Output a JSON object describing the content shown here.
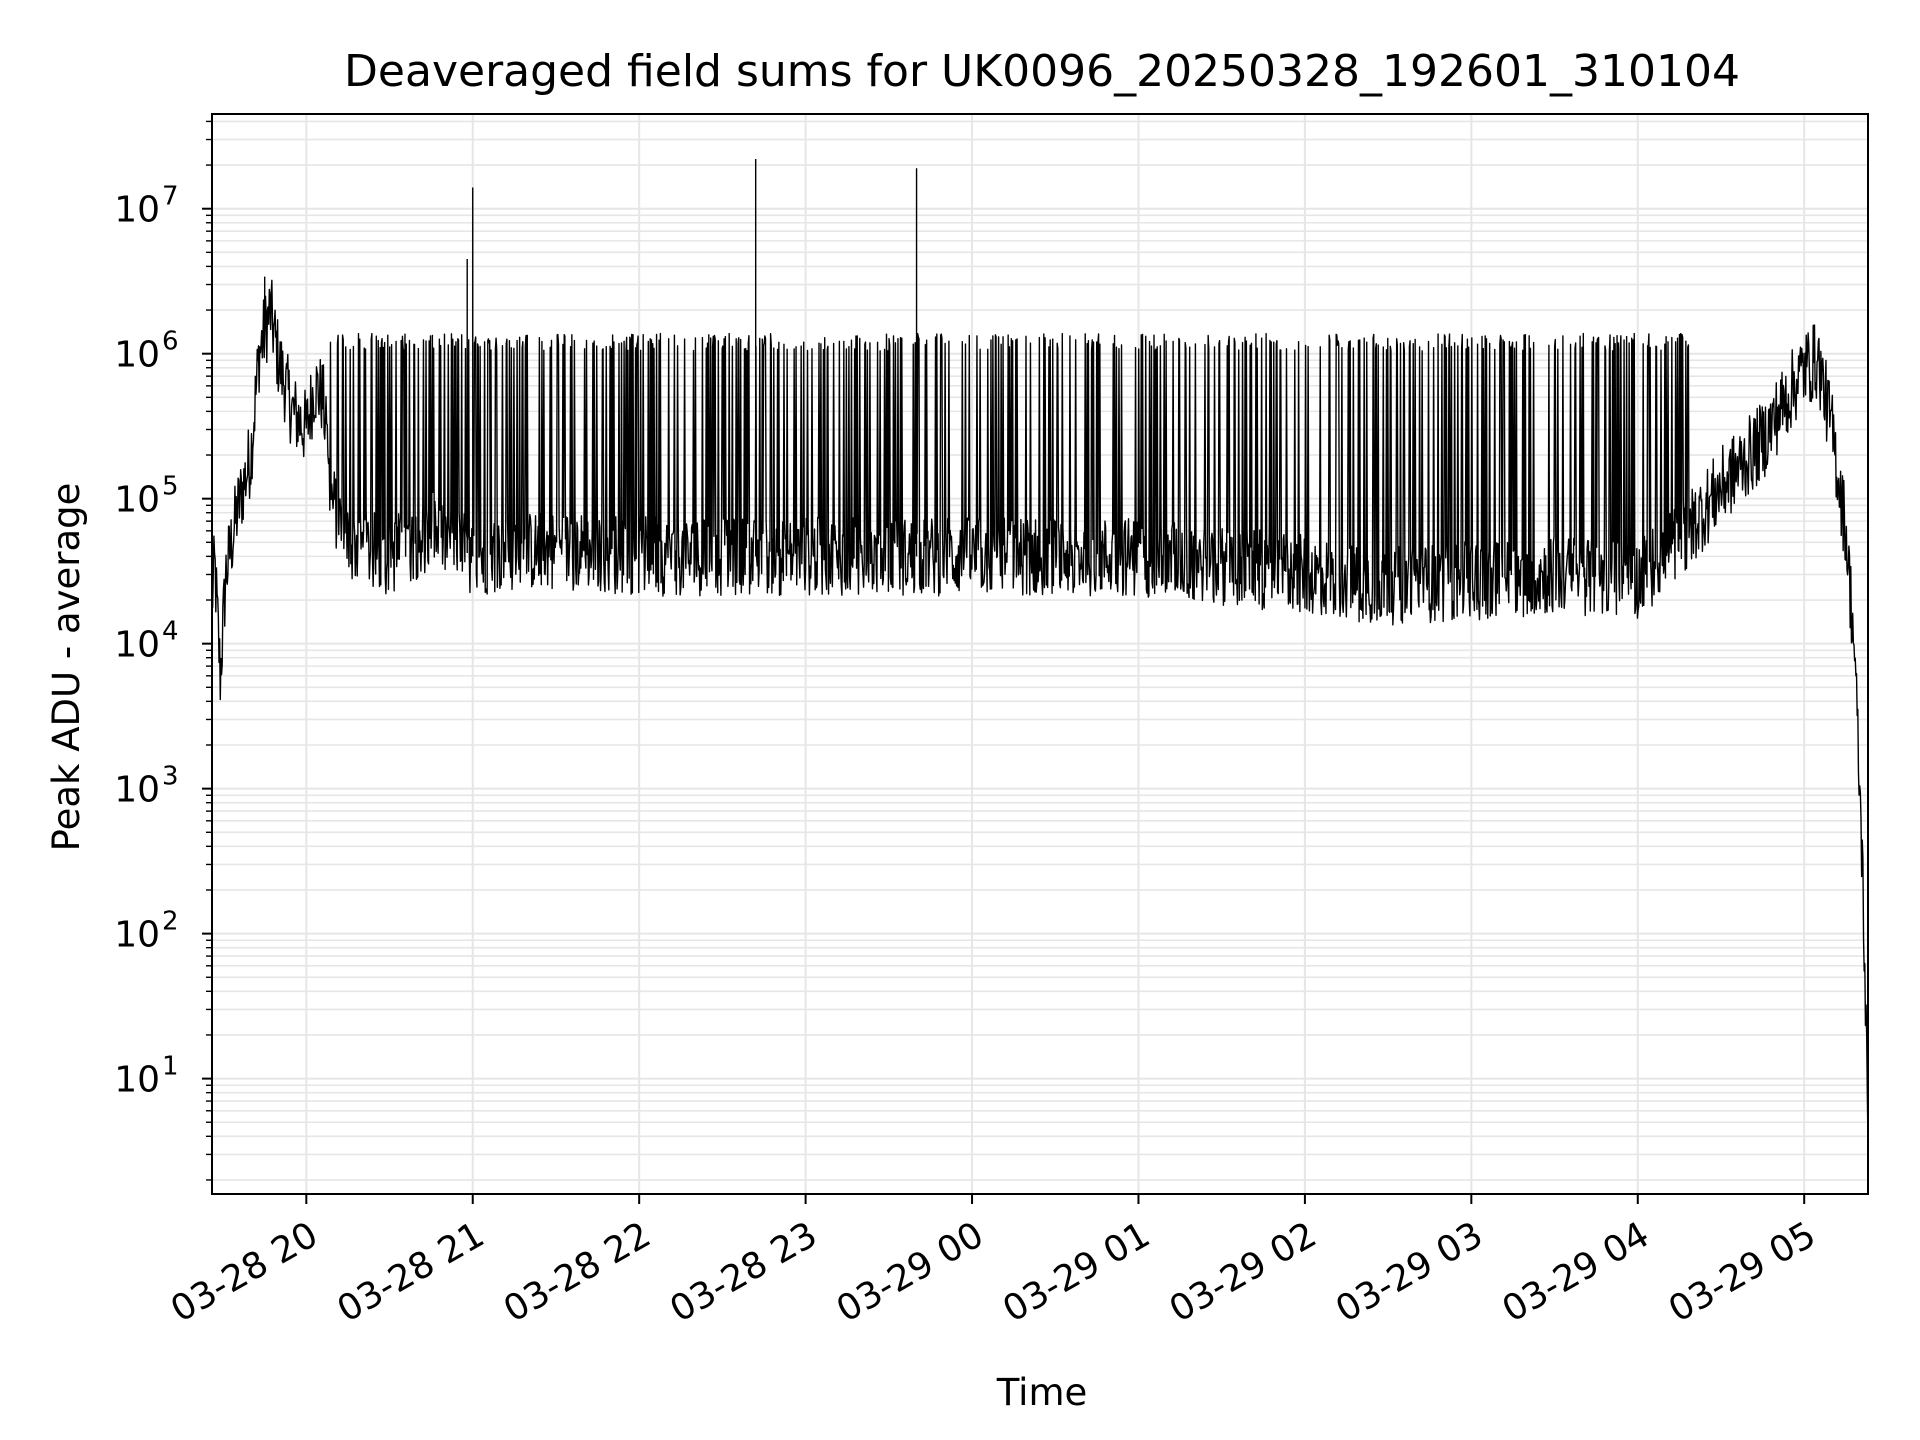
{
  "chart_data": {
    "type": "line",
    "title": "Deaveraged field sums for UK0096_20250328_192601_310104",
    "xlabel": "Time",
    "ylabel": "Peak ADU - average",
    "yscale": "log",
    "grid": true,
    "xlim": [
      "2025-03-28 19:26",
      "2025-03-29 05:23"
    ],
    "ylim": [
      1.6,
      45000000
    ],
    "x_ticks": [
      "03-28 20",
      "03-28 21",
      "03-28 22",
      "03-28 23",
      "03-29 00",
      "03-29 01",
      "03-29 02",
      "03-29 03",
      "03-29 04",
      "03-29 05"
    ],
    "y_ticks": [
      {
        "base": "10",
        "exp": "1"
      },
      {
        "base": "10",
        "exp": "2"
      },
      {
        "base": "10",
        "exp": "3"
      },
      {
        "base": "10",
        "exp": "4"
      },
      {
        "base": "10",
        "exp": "5"
      },
      {
        "base": "10",
        "exp": "6"
      },
      {
        "base": "10",
        "exp": "7"
      }
    ],
    "line_color": "#000000",
    "grid_color": "#e6e6e6",
    "series": [
      {
        "values_note_free": true,
        "baseline_points": [
          [
            "2025-03-28 19:26",
            20000
          ],
          [
            "2025-03-28 19:27",
            35000
          ],
          [
            "2025-03-28 19:29",
            6000
          ],
          [
            "2025-03-28 19:31",
            30000
          ],
          [
            "2025-03-28 19:35",
            80000
          ],
          [
            "2025-03-28 19:40",
            200000
          ],
          [
            "2025-03-28 19:43",
            1000000
          ],
          [
            "2025-03-28 19:47",
            2000000
          ],
          [
            "2025-03-28 19:50",
            900000
          ],
          [
            "2025-03-28 19:55",
            400000
          ],
          [
            "2025-03-28 20:00",
            300000
          ],
          [
            "2025-03-28 20:03",
            600000
          ],
          [
            "2025-03-28 20:06",
            500000
          ],
          [
            "2025-03-28 20:09",
            100000
          ],
          [
            "2025-03-28 20:15",
            50000
          ],
          [
            "2025-03-28 20:30",
            40000
          ],
          [
            "2025-03-28 20:45",
            60000
          ],
          [
            "2025-03-28 21:00",
            40000
          ],
          [
            "2025-03-28 21:30",
            45000
          ],
          [
            "2025-03-28 22:00",
            40000
          ],
          [
            "2025-03-28 23:00",
            40000
          ],
          [
            "2025-03-29 00:00",
            40000
          ],
          [
            "2025-03-29 01:00",
            40000
          ],
          [
            "2025-03-29 02:00",
            30000
          ],
          [
            "2025-03-29 02:30",
            25000
          ],
          [
            "2025-03-29 03:00",
            27000
          ],
          [
            "2025-03-29 03:30",
            30000
          ],
          [
            "2025-03-29 04:00",
            28000
          ],
          [
            "2025-03-29 04:15",
            50000
          ],
          [
            "2025-03-29 04:30",
            120000
          ],
          [
            "2025-03-29 04:45",
            250000
          ],
          [
            "2025-03-29 05:00",
            800000
          ],
          [
            "2025-03-29 05:05",
            900000
          ],
          [
            "2025-03-29 05:10",
            300000
          ],
          [
            "2025-03-29 05:15",
            60000
          ],
          [
            "2025-03-29 05:18",
            10000
          ],
          [
            "2025-03-29 05:21",
            300
          ],
          [
            "2025-03-29 05:22",
            40
          ],
          [
            "2025-03-29 05:23",
            4
          ]
        ],
        "spikes": [
          [
            "2025-03-28 21:00",
            14000000
          ],
          [
            "2025-03-28 22:42",
            22000000
          ],
          [
            "2025-03-28 23:40",
            19000000
          ],
          [
            "2025-03-28 20:58",
            4500000
          ],
          [
            "2025-03-28 19:45",
            3400000
          ]
        ],
        "burst_peak": 1200000
      }
    ]
  }
}
